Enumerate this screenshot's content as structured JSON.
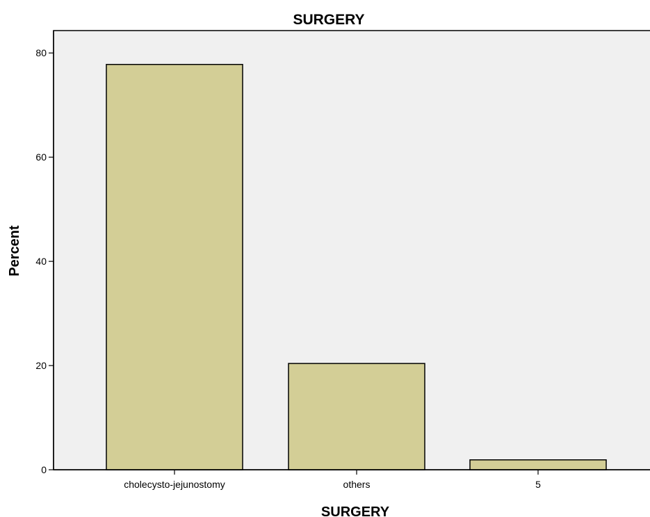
{
  "chart_data": {
    "type": "bar",
    "title": "SURGERY",
    "xlabel": "SURGERY",
    "ylabel": "Percent",
    "categories": [
      "cholecysto-jejunostomy",
      "others",
      "5"
    ],
    "values": [
      77.8,
      20.4,
      1.9
    ],
    "ylim": [
      0,
      84.3
    ],
    "yticks": [
      "0",
      "20",
      "40",
      "60",
      "80"
    ],
    "grid": false,
    "colors": {
      "plot_background": "#f0f0f0",
      "bar_fill": "#d3ce96",
      "bar_stroke": "#000000",
      "frame": "#000000"
    }
  }
}
